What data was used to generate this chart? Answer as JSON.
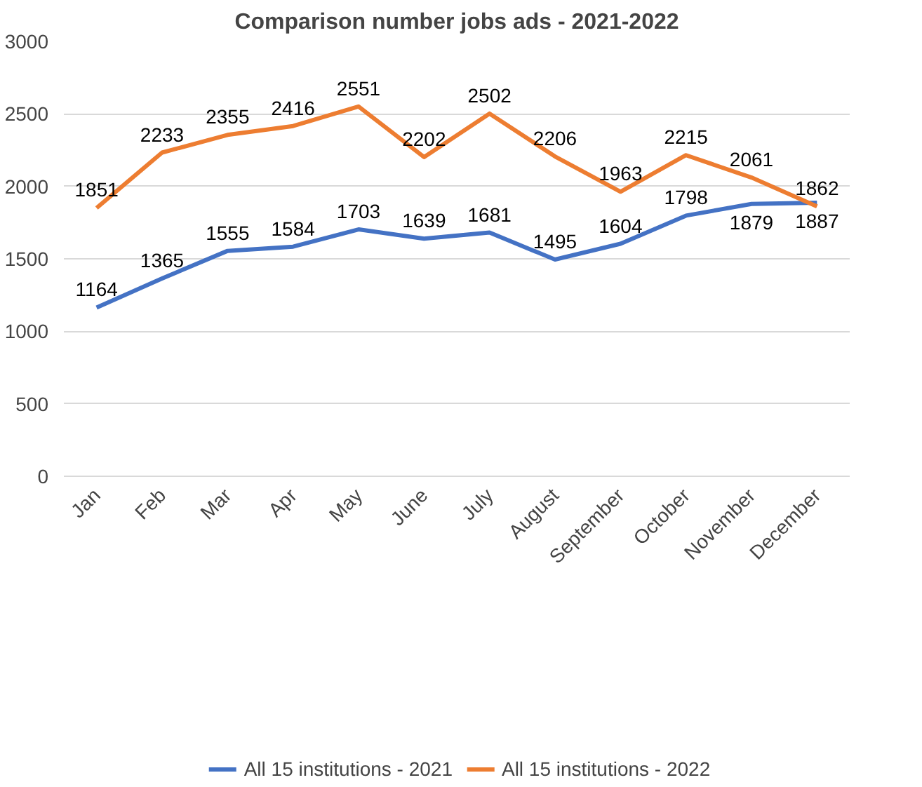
{
  "chart_data": {
    "type": "line",
    "title": "Comparison number jobs ads - 2021-2022",
    "categories": [
      "Jan",
      "Feb",
      "Mar",
      "Apr",
      "May",
      "June",
      "July",
      "August",
      "September",
      "October",
      "November",
      "December"
    ],
    "series": [
      {
        "name": "All 15 institutions - 2021",
        "color": "#4472c4",
        "values": [
          1164,
          1365,
          1555,
          1584,
          1703,
          1639,
          1681,
          1495,
          1604,
          1798,
          1879,
          1887
        ]
      },
      {
        "name": "All 15 institutions - 2022",
        "color": "#ed7d31",
        "values": [
          1851,
          2233,
          2355,
          2416,
          2551,
          2202,
          2502,
          2206,
          1963,
          2215,
          2061,
          1862
        ]
      }
    ],
    "ylim": [
      0,
      3000
    ],
    "yticks": [
      0,
      500,
      1000,
      1500,
      2000,
      2500,
      3000
    ],
    "grid": "y",
    "legend": "bottom",
    "data_labels": true,
    "marker": "none",
    "line_style": "solid"
  }
}
